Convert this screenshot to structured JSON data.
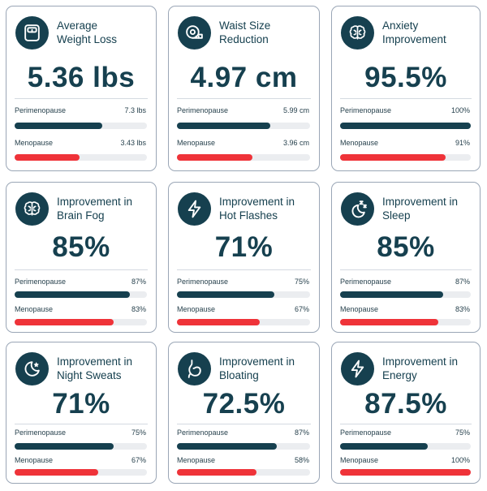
{
  "colors": {
    "primary": "#16404f",
    "accent": "#ef3339",
    "border": "#9aa6b6",
    "track": "#ebedf0"
  },
  "cards": [
    {
      "icon": "scale-icon",
      "title": "Average\nWeight Loss",
      "value": "5.36 lbs",
      "rows": [
        {
          "label": "Perimenopause",
          "value": "7.3 lbs",
          "fill": 0.66
        },
        {
          "label": "Menopause",
          "value": "3.43 lbs",
          "fill": 0.49
        }
      ]
    },
    {
      "icon": "tape-measure-icon",
      "title": "Waist Size\nReduction",
      "value": "4.97 cm",
      "rows": [
        {
          "label": "Perimenopause",
          "value": "5.99 cm",
          "fill": 0.7
        },
        {
          "label": "Menopause",
          "value": "3.96 cm",
          "fill": 0.57
        }
      ]
    },
    {
      "icon": "brain-icon",
      "title": "Anxiety\nImprovement",
      "value": "95.5%",
      "rows": [
        {
          "label": "Perimenopause",
          "value": "100%",
          "fill": 1.0
        },
        {
          "label": "Menopause",
          "value": "91%",
          "fill": 0.81
        }
      ]
    },
    {
      "icon": "brain-icon",
      "title": "Improvement in\nBrain Fog",
      "value": "85%",
      "rows": [
        {
          "label": "Perimenopause",
          "value": "87%",
          "fill": 0.87
        },
        {
          "label": "Menopause",
          "value": "83%",
          "fill": 0.75
        }
      ]
    },
    {
      "icon": "lightning-icon",
      "title": "Improvement in\nHot Flashes",
      "value": "71%",
      "rows": [
        {
          "label": "Perimenopause",
          "value": "75%",
          "fill": 0.73
        },
        {
          "label": "Menopause",
          "value": "67%",
          "fill": 0.62
        }
      ]
    },
    {
      "icon": "sleep-moon-icon",
      "title": "Improvement in\nSleep",
      "value": "85%",
      "rows": [
        {
          "label": "Perimenopause",
          "value": "87%",
          "fill": 0.79
        },
        {
          "label": "Menopause",
          "value": "83%",
          "fill": 0.75
        }
      ]
    },
    {
      "icon": "moon-star-icon",
      "title": "Improvement in\nNight Sweats",
      "value": "71%",
      "rows": [
        {
          "label": "Perimenopause",
          "value": "75%",
          "fill": 0.75
        },
        {
          "label": "Menopause",
          "value": "67%",
          "fill": 0.63
        }
      ]
    },
    {
      "icon": "stomach-icon",
      "title": "Improvement in\nBloating",
      "value": "72.5%",
      "rows": [
        {
          "label": "Perimenopause",
          "value": "87%",
          "fill": 0.75
        },
        {
          "label": "Menopause",
          "value": "58%",
          "fill": 0.6
        }
      ]
    },
    {
      "icon": "lightning-icon",
      "title": "Improvement in\nEnergy",
      "value": "87.5%",
      "rows": [
        {
          "label": "Perimenopause",
          "value": "75%",
          "fill": 0.67
        },
        {
          "label": "Menopause",
          "value": "100%",
          "fill": 1.0
        }
      ]
    }
  ]
}
